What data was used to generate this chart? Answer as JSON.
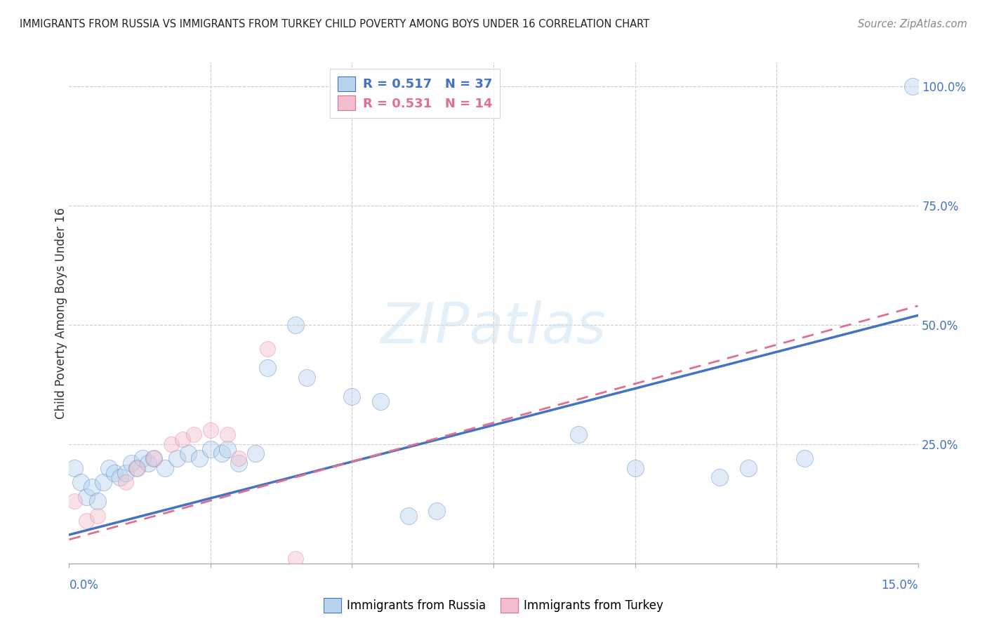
{
  "title": "IMMIGRANTS FROM RUSSIA VS IMMIGRANTS FROM TURKEY CHILD POVERTY AMONG BOYS UNDER 16 CORRELATION CHART",
  "source": "Source: ZipAtlas.com",
  "ylabel": "Child Poverty Among Boys Under 16",
  "legend_russia": {
    "R": "0.517",
    "N": "37",
    "color": "#b8d4ed"
  },
  "legend_turkey": {
    "R": "0.531",
    "N": "14",
    "color": "#f2bece"
  },
  "russia_scatter": [
    [
      0.001,
      0.2
    ],
    [
      0.002,
      0.17
    ],
    [
      0.003,
      0.14
    ],
    [
      0.004,
      0.16
    ],
    [
      0.005,
      0.13
    ],
    [
      0.006,
      0.17
    ],
    [
      0.007,
      0.2
    ],
    [
      0.008,
      0.19
    ],
    [
      0.009,
      0.18
    ],
    [
      0.01,
      0.19
    ],
    [
      0.011,
      0.21
    ],
    [
      0.012,
      0.2
    ],
    [
      0.013,
      0.22
    ],
    [
      0.014,
      0.21
    ],
    [
      0.015,
      0.22
    ],
    [
      0.017,
      0.2
    ],
    [
      0.019,
      0.22
    ],
    [
      0.021,
      0.23
    ],
    [
      0.023,
      0.22
    ],
    [
      0.025,
      0.24
    ],
    [
      0.027,
      0.23
    ],
    [
      0.028,
      0.24
    ],
    [
      0.03,
      0.21
    ],
    [
      0.033,
      0.23
    ],
    [
      0.035,
      0.41
    ],
    [
      0.04,
      0.5
    ],
    [
      0.042,
      0.39
    ],
    [
      0.05,
      0.35
    ],
    [
      0.055,
      0.34
    ],
    [
      0.06,
      0.1
    ],
    [
      0.065,
      0.11
    ],
    [
      0.09,
      0.27
    ],
    [
      0.1,
      0.2
    ],
    [
      0.115,
      0.18
    ],
    [
      0.12,
      0.2
    ],
    [
      0.13,
      0.22
    ],
    [
      0.149,
      1.0
    ]
  ],
  "turkey_scatter": [
    [
      0.001,
      0.13
    ],
    [
      0.003,
      0.09
    ],
    [
      0.005,
      0.1
    ],
    [
      0.01,
      0.17
    ],
    [
      0.012,
      0.2
    ],
    [
      0.015,
      0.22
    ],
    [
      0.018,
      0.25
    ],
    [
      0.02,
      0.26
    ],
    [
      0.022,
      0.27
    ],
    [
      0.025,
      0.28
    ],
    [
      0.028,
      0.27
    ],
    [
      0.03,
      0.22
    ],
    [
      0.035,
      0.45
    ],
    [
      0.04,
      0.01
    ]
  ],
  "russia_line_color": "#4472c4",
  "turkey_line_color": "#e07090",
  "russia_line": {
    "x0": 0.0,
    "y0": 0.06,
    "x1": 0.15,
    "y1": 0.52
  },
  "turkey_line": {
    "x0": 0.0,
    "y0": 0.05,
    "x1": 0.15,
    "y1": 0.54
  },
  "scatter_size_russia": 300,
  "scatter_size_turkey": 250,
  "scatter_alpha": 0.45,
  "xlim": [
    0.0,
    0.15
  ],
  "ylim": [
    0.0,
    1.05
  ],
  "right_yticks": [
    0.25,
    0.5,
    0.75,
    1.0
  ],
  "right_yticklabels": [
    "25.0%",
    "50.0%",
    "75.0%",
    "100.0%"
  ],
  "watermark_text": "ZIPatlas",
  "background_color": "#ffffff"
}
